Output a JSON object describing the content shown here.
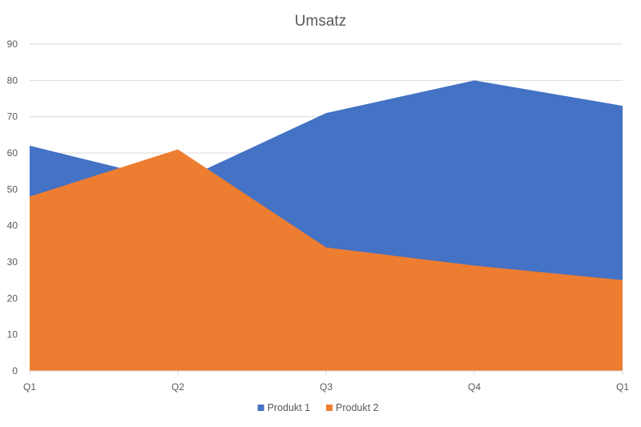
{
  "chart_data": {
    "type": "area",
    "title": "Umsatz",
    "categories": [
      "Q1",
      "Q2",
      "Q3",
      "Q4",
      "Q1"
    ],
    "series": [
      {
        "name": "Produkt 1",
        "values": [
          62,
          52,
          71,
          80,
          73
        ],
        "color": "#4472c4"
      },
      {
        "name": "Produkt 2",
        "values": [
          48,
          61,
          34,
          29,
          25
        ],
        "color": "#ed7d31"
      }
    ],
    "ylim": [
      0,
      90
    ],
    "yticks": [
      0,
      10,
      20,
      30,
      40,
      50,
      60,
      70,
      80,
      90
    ],
    "grid": true,
    "legend": "bottom",
    "xlabel": "",
    "ylabel": ""
  }
}
